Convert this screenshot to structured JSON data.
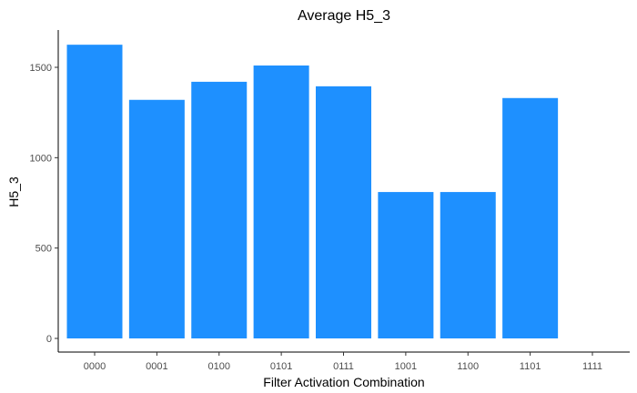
{
  "chart_data": {
    "type": "bar",
    "title": "Average H5_3",
    "xlabel": "Filter Activation Combination",
    "ylabel": "H5_3",
    "categories": [
      "0000",
      "0001",
      "0100",
      "0101",
      "0111",
      "1001",
      "1100",
      "1101",
      "1111"
    ],
    "values": [
      1625,
      1320,
      1420,
      1510,
      1395,
      810,
      810,
      1330,
      0
    ],
    "yticks": [
      0,
      500,
      1000,
      1500
    ],
    "ylim": [
      0,
      1700
    ],
    "grid": false,
    "legend": "none",
    "bar_color": "#1E90FF"
  }
}
